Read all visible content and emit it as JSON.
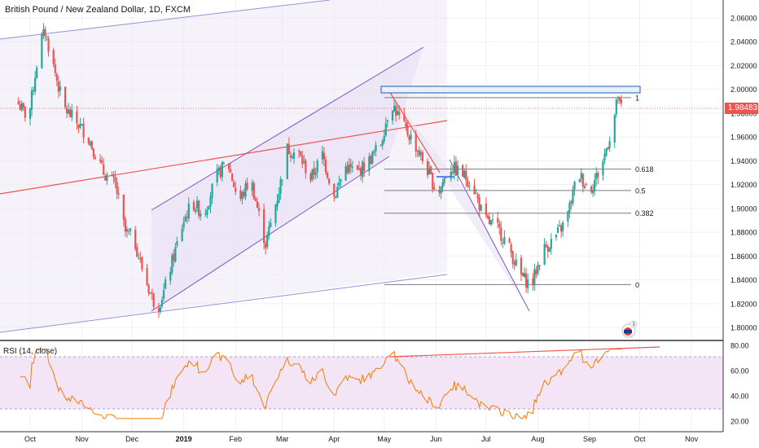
{
  "header": {
    "title": "British Pound / New Zealand Dollar, 1D, FXCM"
  },
  "rsi": {
    "label": "RSI (14, close)",
    "color": "#f57c00",
    "band_fill": "#e1bee7",
    "ticks": [
      "80.00",
      "60.00",
      "40.00",
      "20.00"
    ]
  },
  "current_price": {
    "value": 1.98483,
    "label": "1.98483",
    "color": "#ef5350"
  },
  "colors": {
    "up": "#26a69a",
    "down": "#ef5350",
    "channel": "#7e57c2",
    "trendline": "#ef5350",
    "fib": "#787b86"
  },
  "chart_data": {
    "type": "candlestick",
    "title": "British Pound / New Zealand Dollar, 1D, FXCM",
    "x_ticks": [
      "Oct",
      "Nov",
      "Dec",
      "2019",
      "Feb",
      "Mar",
      "Apr",
      "May",
      "Jun",
      "Jul",
      "Aug",
      "Sep",
      "Oct",
      "Nov"
    ],
    "y_ticks": [
      "2.06000",
      "2.04000",
      "2.02000",
      "2.00000",
      "1.98000",
      "1.96000",
      "1.94000",
      "1.92000",
      "1.90000",
      "1.88000",
      "1.86000",
      "1.84000",
      "1.82000",
      "1.80000"
    ],
    "ylim": [
      1.792,
      2.072
    ],
    "price_path": [
      [
        "2018-09-24",
        1.99
      ],
      [
        "2018-10-01",
        1.975
      ],
      [
        "2018-10-08",
        2.04
      ],
      [
        "2018-10-11",
        2.048
      ],
      [
        "2018-10-22",
        1.985
      ],
      [
        "2018-11-05",
        1.962
      ],
      [
        "2018-11-15",
        1.93
      ],
      [
        "2018-11-22",
        1.92
      ],
      [
        "2018-11-28",
        1.88
      ],
      [
        "2018-12-03",
        1.875
      ],
      [
        "2018-12-10",
        1.84
      ],
      [
        "2018-12-17",
        1.815
      ],
      [
        "2018-12-21",
        1.83
      ],
      [
        "2019-01-02",
        1.89
      ],
      [
        "2019-01-07",
        1.905
      ],
      [
        "2019-01-14",
        1.895
      ],
      [
        "2019-01-21",
        1.925
      ],
      [
        "2019-01-28",
        1.94
      ],
      [
        "2019-02-04",
        1.905
      ],
      [
        "2019-02-11",
        1.925
      ],
      [
        "2019-02-20",
        1.87
      ],
      [
        "2019-02-28",
        1.915
      ],
      [
        "2019-03-05",
        1.95
      ],
      [
        "2019-03-12",
        1.945
      ],
      [
        "2019-03-19",
        1.925
      ],
      [
        "2019-03-26",
        1.945
      ],
      [
        "2019-04-02",
        1.91
      ],
      [
        "2019-04-09",
        1.935
      ],
      [
        "2019-04-16",
        1.93
      ],
      [
        "2019-04-23",
        1.94
      ],
      [
        "2019-04-30",
        1.955
      ],
      [
        "2019-05-06",
        1.99
      ],
      [
        "2019-05-13",
        1.97
      ],
      [
        "2019-05-20",
        1.955
      ],
      [
        "2019-05-27",
        1.935
      ],
      [
        "2019-06-03",
        1.912
      ],
      [
        "2019-06-10",
        1.935
      ],
      [
        "2019-06-17",
        1.93
      ],
      [
        "2019-06-24",
        1.92
      ],
      [
        "2019-07-01",
        1.89
      ],
      [
        "2019-07-08",
        1.885
      ],
      [
        "2019-07-15",
        1.87
      ],
      [
        "2019-07-22",
        1.845
      ],
      [
        "2019-07-29",
        1.835
      ],
      [
        "2019-08-05",
        1.865
      ],
      [
        "2019-08-12",
        1.875
      ],
      [
        "2019-08-19",
        1.89
      ],
      [
        "2019-08-26",
        1.93
      ],
      [
        "2019-09-02",
        1.915
      ],
      [
        "2019-09-09",
        1.935
      ],
      [
        "2019-09-12",
        1.95
      ],
      [
        "2019-09-16",
        1.97
      ],
      [
        "2019-09-19",
        1.995
      ],
      [
        "2019-09-20",
        1.985
      ]
    ],
    "rsi_ticks": [
      "80.00",
      "60.00",
      "40.00",
      "20.00"
    ],
    "rsi_bands": [
      30,
      70
    ],
    "fib_levels": [
      {
        "label": "1",
        "price": 1.993
      },
      {
        "label": "0.618",
        "price": 1.933
      },
      {
        "label": "0.5",
        "price": 1.915
      },
      {
        "label": "0.382",
        "price": 1.896
      },
      {
        "label": "0",
        "price": 1.836
      }
    ],
    "current_price": 1.98483
  }
}
